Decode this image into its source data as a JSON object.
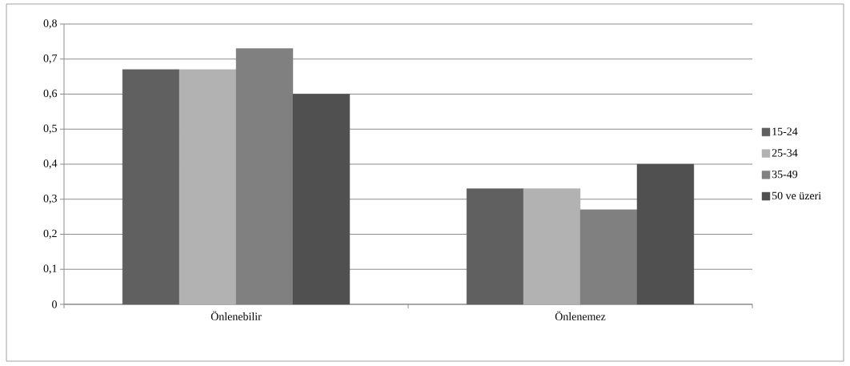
{
  "chart_data": {
    "type": "bar",
    "categories": [
      "Önlenebilir",
      "Önlenemez"
    ],
    "series": [
      {
        "name": "15-24",
        "color": "#606060",
        "values": [
          0.67,
          0.33
        ]
      },
      {
        "name": "25-34",
        "color": "#b2b2b2",
        "values": [
          0.67,
          0.33
        ]
      },
      {
        "name": "35-49",
        "color": "#808080",
        "values": [
          0.73,
          0.27
        ]
      },
      {
        "name": "50 ve üzeri",
        "color": "#505050",
        "values": [
          0.6,
          0.4
        ]
      }
    ],
    "ylim": [
      0,
      0.8
    ],
    "yticks": [
      0,
      {
        "value": 0.1,
        "label": "0,1"
      },
      {
        "value": 0.2,
        "label": "0,2"
      },
      {
        "value": 0.3,
        "label": "0,3"
      },
      {
        "value": 0.4,
        "label": "0,4"
      },
      {
        "value": 0.5,
        "label": "0,5"
      },
      {
        "value": 0.6,
        "label": "0,6"
      },
      {
        "value": 0.7,
        "label": "0,7"
      },
      {
        "value": 0.8,
        "label": "0,8"
      }
    ],
    "grid": "y",
    "legend": "right"
  }
}
